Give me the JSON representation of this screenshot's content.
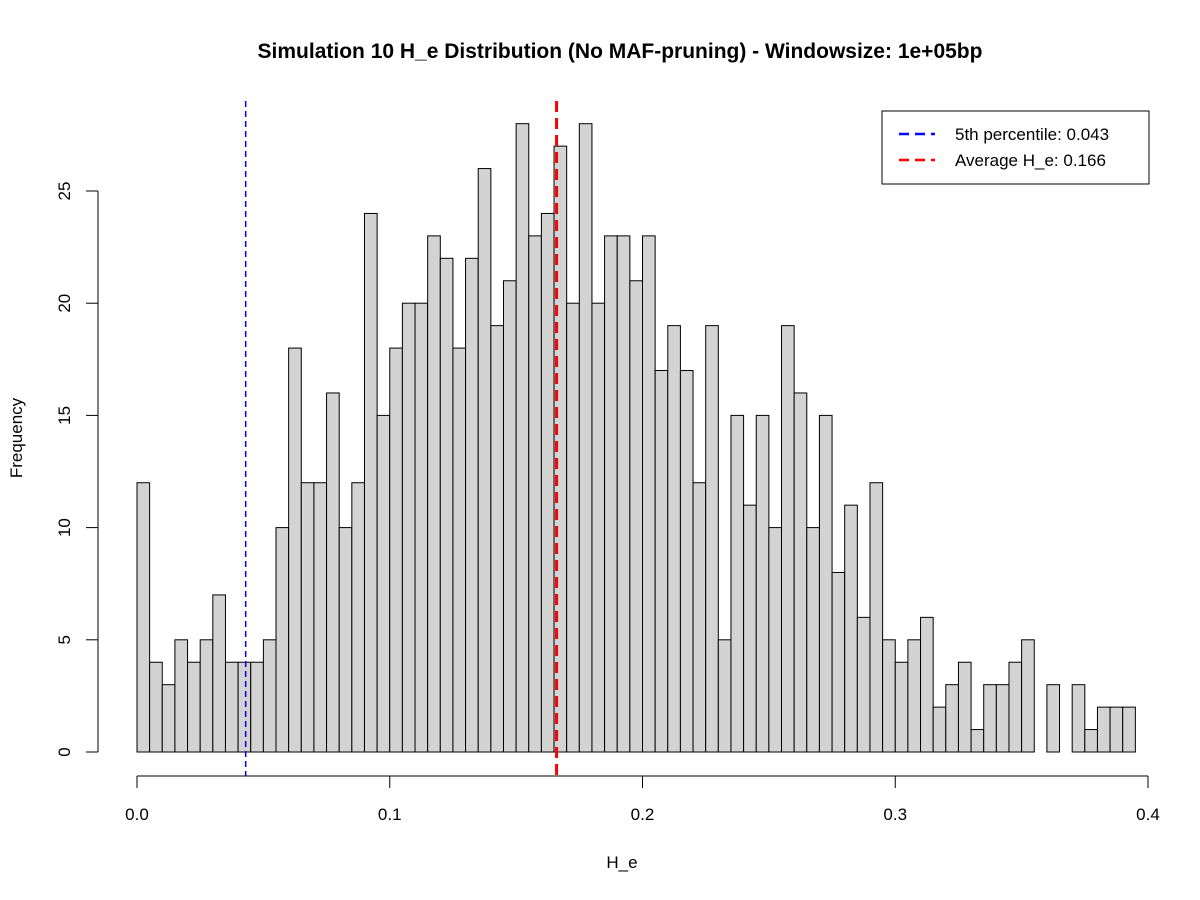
{
  "chart_data": {
    "type": "bar",
    "title": "Simulation 10 H_e Distribution (No MAF-pruning) - Windowsize: 1e+05bp",
    "xlabel": "H_e",
    "ylabel": "Frequency",
    "xlim": [
      0,
      0.4
    ],
    "ylim": [
      0,
      28
    ],
    "x_ticks": [
      "0.0",
      "0.1",
      "0.2",
      "0.3",
      "0.4"
    ],
    "y_ticks": [
      "0",
      "5",
      "10",
      "15",
      "20",
      "25"
    ],
    "bin_start": 0,
    "bin_width": 0.005,
    "values": [
      12,
      4,
      3,
      5,
      4,
      5,
      7,
      4,
      4,
      4,
      5,
      10,
      18,
      12,
      12,
      16,
      10,
      12,
      24,
      15,
      18,
      20,
      20,
      23,
      22,
      18,
      22,
      26,
      19,
      21,
      28,
      23,
      24,
      27,
      20,
      28,
      20,
      23,
      23,
      21,
      23,
      17,
      19,
      17,
      12,
      19,
      5,
      15,
      11,
      15,
      10,
      19,
      16,
      10,
      15,
      8,
      11,
      6,
      12,
      5,
      4,
      5,
      6,
      2,
      3,
      4,
      1,
      3,
      3,
      4,
      5,
      0,
      3,
      0,
      3,
      1,
      2,
      2,
      2
    ],
    "bar_fill": "#d3d3d3",
    "bar_stroke": "#000000",
    "reference_lines": [
      {
        "name": "5th percentile",
        "value": 0.043,
        "color": "#0000ff",
        "style": "dashed-thin"
      },
      {
        "name": "Average H_e",
        "value": 0.166,
        "color": "#ff0000",
        "style": "dashed-thick"
      }
    ],
    "legend": {
      "position": "top-right",
      "entries": [
        {
          "label": "5th percentile:  0.043",
          "color": "#0000ff"
        },
        {
          "label": "Average H_e:  0.166",
          "color": "#ff0000"
        }
      ]
    },
    "grid": false
  }
}
